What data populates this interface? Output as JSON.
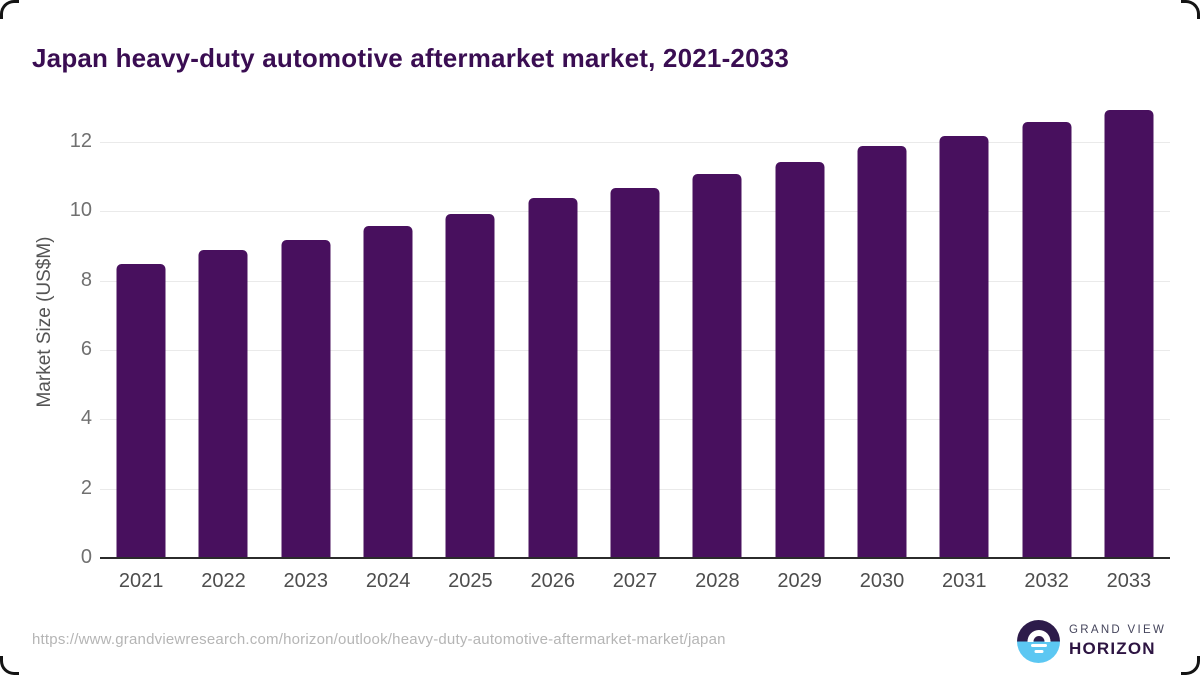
{
  "page": {
    "title": "Japan heavy-duty automotive aftermarket market, 2021-2033"
  },
  "chart_data": {
    "type": "bar",
    "title": "Japan heavy-duty automotive aftermarket market, 2021-2033",
    "categories": [
      "2021",
      "2022",
      "2023",
      "2024",
      "2025",
      "2026",
      "2027",
      "2028",
      "2029",
      "2030",
      "2031",
      "2032",
      "2033"
    ],
    "values": [
      8.5,
      8.9,
      9.2,
      9.6,
      9.95,
      10.4,
      10.7,
      11.1,
      11.45,
      11.9,
      12.2,
      12.6,
      12.95
    ],
    "xlabel": "",
    "ylabel": "Market Size (US$M)",
    "yticks": [
      0,
      2,
      4,
      6,
      8,
      10,
      12
    ],
    "ylim": [
      0,
      13
    ],
    "grid": "horizontal-light",
    "legend": "none",
    "bar_color": "#48105e"
  },
  "footer": {
    "source_url": "https://www.grandviewresearch.com/horizon/outlook/heavy-duty-automotive-aftermarket-market/japan",
    "logo": {
      "line1": "GRAND VIEW",
      "line2": "HORIZON"
    }
  },
  "colors": {
    "bar": "#48105e",
    "title": "#3a0d52",
    "axis_text": "#4d4d4d",
    "tick_text": "#707070",
    "gridline": "#eaeaea",
    "baseline": "#2b2b2b",
    "url_text": "#b5b5b5",
    "logo_navy": "#2d1b4a",
    "logo_blue": "#5cc7f2"
  }
}
